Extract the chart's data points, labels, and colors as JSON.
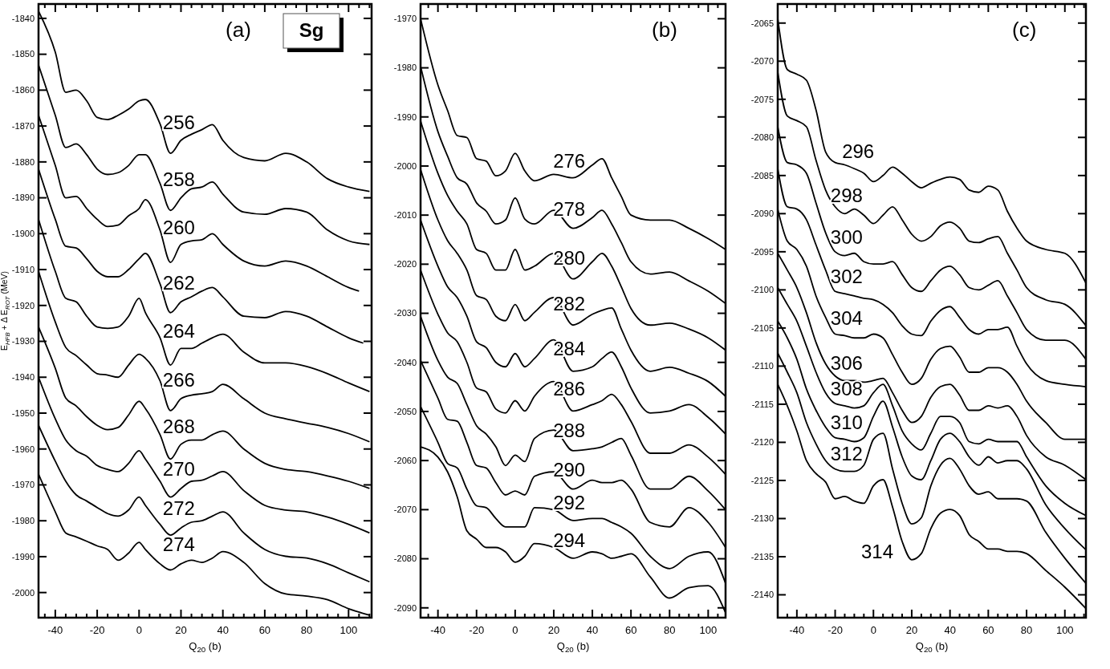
{
  "chart_data": [
    {
      "type": "line",
      "title": "Sg",
      "xlabel": "Q$_{20}$ (b)",
      "ylabel": "E$_{HFB}$ + Δ E$_{ROT}$ (MeV)",
      "xlim": [
        -48,
        111
      ],
      "ylim": [
        -2007,
        -1836
      ],
      "xticks": [
        {
          "value": -45,
          "label": null
        },
        -40,
        {
          "value": -35,
          "label": null
        },
        {
          "value": -30,
          "label": null
        },
        {
          "value": -25,
          "label": null
        },
        -20,
        {
          "value": -15,
          "label": null
        },
        {
          "value": -10,
          "label": null
        },
        {
          "value": -5,
          "label": null
        },
        0,
        {
          "value": 5,
          "label": null
        },
        {
          "value": 10,
          "label": null
        },
        {
          "value": 15,
          "label": null
        },
        20,
        {
          "value": 25,
          "label": null
        },
        {
          "value": 30,
          "label": null
        },
        {
          "value": 35,
          "label": null
        },
        40,
        {
          "value": 45,
          "label": null
        },
        {
          "value": 50,
          "label": null
        },
        {
          "value": 55,
          "label": null
        },
        60,
        {
          "value": 65,
          "label": null
        },
        {
          "value": 70,
          "label": null
        },
        {
          "value": 75,
          "label": null
        },
        80,
        {
          "value": 85,
          "label": null
        },
        {
          "value": 90,
          "label": null
        },
        {
          "value": 95,
          "label": null
        },
        100,
        {
          "value": 105,
          "label": null
        },
        {
          "value": 110,
          "label": null
        }
      ],
      "yticks": [
        -2000,
        -1990,
        -1980,
        -1970,
        -1960,
        -1950,
        -1940,
        -1930,
        -1920,
        -1910,
        -1900,
        -1890,
        -1880,
        -1870,
        -1860,
        -1850,
        -1840
      ],
      "x": [
        -48,
        -40,
        -35,
        -30,
        -25,
        -20,
        -15,
        -10,
        -5,
        0,
        3,
        10,
        15,
        20,
        25,
        30,
        35,
        40,
        50,
        60,
        70,
        80,
        90,
        100,
        110
      ],
      "series": [
        {
          "name": "256",
          "color": "#000000",
          "values": [
            -1838,
            -1849.4,
            -1860.6,
            -1860,
            -1863,
            -1867.6,
            -1868.2,
            -1867,
            -1865.3,
            -1863,
            -1862.6,
            -1869.4,
            -1877.6,
            -1874,
            -1872.3,
            -1871,
            -1869.6,
            -1874,
            -1878.8,
            -1879.7,
            -1877.6,
            -1880,
            -1884.7,
            -1887,
            -1888.2
          ]
        },
        {
          "name": "258",
          "color": "#000000",
          "values": [
            -1853,
            -1867,
            -1876,
            -1875,
            -1878,
            -1882,
            -1883.5,
            -1883,
            -1881,
            -1878,
            -1878,
            -1886,
            -1893.5,
            -1890,
            -1887.5,
            -1887,
            -1885.6,
            -1889,
            -1894,
            -1894.6,
            -1893,
            -1894,
            -1899,
            -1902,
            -1903
          ]
        },
        {
          "name": "260",
          "color": "#000000",
          "x": [
            -48,
            -40,
            -35,
            -30,
            -25,
            -20,
            -15,
            -10,
            -5,
            0,
            3,
            10,
            15,
            20,
            25,
            30,
            35,
            40,
            50,
            60,
            70,
            80,
            90,
            100,
            105
          ],
          "values": [
            -1867,
            -1881,
            -1890,
            -1889.6,
            -1893,
            -1896,
            -1898,
            -1897.6,
            -1895,
            -1893,
            -1890.5,
            -1899,
            -1908,
            -1903,
            -1902,
            -1901.7,
            -1900,
            -1903,
            -1907.6,
            -1909,
            -1907.6,
            -1909,
            -1912,
            -1915,
            -1916
          ]
        },
        {
          "name": "262",
          "color": "#000000",
          "x": [
            -48,
            -40,
            -35,
            -30,
            -25,
            -20,
            -15,
            -10,
            -5,
            0,
            3,
            10,
            15,
            20,
            25,
            30,
            35,
            40,
            50,
            60,
            70,
            80,
            90,
            100,
            107
          ],
          "values": [
            -1882,
            -1896,
            -1903.5,
            -1904,
            -1907,
            -1910.5,
            -1912,
            -1912,
            -1910,
            -1907,
            -1905.5,
            -1914,
            -1922,
            -1919,
            -1917.6,
            -1916,
            -1915,
            -1917.6,
            -1923,
            -1923.4,
            -1921.7,
            -1923,
            -1926,
            -1929,
            -1930.5
          ]
        },
        {
          "name": "264",
          "color": "#000000",
          "values": [
            -1896,
            -1910.5,
            -1918,
            -1919,
            -1923,
            -1926,
            -1926.4,
            -1926,
            -1923,
            -1918,
            -1922,
            -1929,
            -1936.6,
            -1932,
            -1932,
            -1930.5,
            -1929,
            -1928,
            -1933,
            -1936,
            -1936,
            -1937,
            -1939,
            -1941.6,
            -1944
          ]
        },
        {
          "name": "266",
          "color": "#000000",
          "values": [
            -1910.5,
            -1924.6,
            -1931.7,
            -1934,
            -1936.6,
            -1939,
            -1939.4,
            -1940,
            -1936.6,
            -1933.6,
            -1934.7,
            -1941,
            -1949.3,
            -1946,
            -1945,
            -1944.6,
            -1944,
            -1942,
            -1946,
            -1950,
            -1951.6,
            -1952.8,
            -1954,
            -1955.7,
            -1958
          ]
        },
        {
          "name": "268",
          "color": "#000000",
          "values": [
            -1926,
            -1937.5,
            -1945.8,
            -1948,
            -1951,
            -1953.4,
            -1954.6,
            -1954,
            -1950.5,
            -1946.7,
            -1948.7,
            -1956,
            -1962.8,
            -1958.7,
            -1957.5,
            -1957.5,
            -1956,
            -1955,
            -1960,
            -1964,
            -1965.7,
            -1966.3,
            -1967.5,
            -1969,
            -1971
          ]
        },
        {
          "name": "270",
          "color": "#000000",
          "values": [
            -1940,
            -1951.6,
            -1957.5,
            -1960.5,
            -1962,
            -1964.6,
            -1965.7,
            -1966.3,
            -1964,
            -1960.5,
            -1962.8,
            -1969,
            -1973.4,
            -1971,
            -1969,
            -1968.7,
            -1967.5,
            -1966.3,
            -1971.6,
            -1975.7,
            -1977,
            -1977.5,
            -1979,
            -1981,
            -1983.4
          ]
        },
        {
          "name": "272",
          "color": "#000000",
          "values": [
            -1953.4,
            -1963.4,
            -1969,
            -1972.8,
            -1974.5,
            -1976.3,
            -1978,
            -1978.7,
            -1977,
            -1973.4,
            -1975.7,
            -1981,
            -1984,
            -1982,
            -1980.4,
            -1980,
            -1978.7,
            -1977.5,
            -1983.4,
            -1988,
            -1989.9,
            -1990.4,
            -1992,
            -1994.5,
            -1997
          ]
        },
        {
          "name": "274",
          "color": "#000000",
          "values": [
            -1967,
            -1977.5,
            -1983.4,
            -1984.5,
            -1985.7,
            -1987,
            -1988,
            -1991,
            -1989,
            -1986,
            -1988,
            -1992,
            -1993.7,
            -1992,
            -1991,
            -1991.6,
            -1990.4,
            -1988.6,
            -1991.6,
            -1997.5,
            -2000.4,
            -2001,
            -2002,
            -2004.5,
            -2006.3
          ]
        }
      ],
      "annotations": [
        "(a)"
      ]
    },
    {
      "type": "line",
      "xlabel": "Q$_{20}$ (b)",
      "xlim": [
        -49,
        109
      ],
      "ylim": [
        -2092,
        -1967
      ],
      "xticks": [
        {
          "value": -45,
          "label": null
        },
        -40,
        {
          "value": -35,
          "label": null
        },
        {
          "value": -30,
          "label": null
        },
        {
          "value": -25,
          "label": null
        },
        -20,
        {
          "value": -15,
          "label": null
        },
        {
          "value": -10,
          "label": null
        },
        {
          "value": -5,
          "label": null
        },
        0,
        {
          "value": 5,
          "label": null
        },
        {
          "value": 10,
          "label": null
        },
        {
          "value": 15,
          "label": null
        },
        20,
        {
          "value": 25,
          "label": null
        },
        {
          "value": 30,
          "label": null
        },
        {
          "value": 35,
          "label": null
        },
        40,
        {
          "value": 45,
          "label": null
        },
        {
          "value": 50,
          "label": null
        },
        {
          "value": 55,
          "label": null
        },
        60,
        {
          "value": 65,
          "label": null
        },
        {
          "value": 70,
          "label": null
        },
        {
          "value": 75,
          "label": null
        },
        80,
        {
          "value": 85,
          "label": null
        },
        {
          "value": 90,
          "label": null
        },
        {
          "value": 95,
          "label": null
        },
        100,
        {
          "value": 105,
          "label": null
        }
      ],
      "yticks": [
        -2090,
        -2080,
        -2070,
        -2060,
        -2050,
        -2040,
        -2030,
        -2020,
        -2010,
        -2000,
        -1990,
        -1980,
        -1970
      ],
      "x": [
        -49,
        -40,
        -35,
        -30,
        -25,
        -20,
        -15,
        -10,
        -5,
        0,
        5,
        10,
        20,
        30,
        40,
        45,
        50,
        55,
        60,
        70,
        80,
        90,
        100,
        109
      ],
      "series": [
        {
          "name": "276",
          "color": "#000000",
          "values": [
            -1970,
            -1983.5,
            -1988.7,
            -1993.8,
            -1994.2,
            -1998.5,
            -1999,
            -2002,
            -2001,
            -1997.4,
            -2001,
            -2003,
            -2001.7,
            -2002.4,
            -1999.8,
            -1998.5,
            -2002.4,
            -2006.2,
            -2010,
            -2011,
            -2011,
            -2012.7,
            -2014.8,
            -2017
          ]
        },
        {
          "name": "278",
          "color": "#000000",
          "values": [
            -1979.7,
            -1993,
            -1998,
            -2002.4,
            -2003.7,
            -2007.5,
            -2009.2,
            -2011.8,
            -2011,
            -2006.5,
            -2010.8,
            -2011.8,
            -2009,
            -2012.7,
            -2010.5,
            -2009,
            -2011.8,
            -2015.6,
            -2019.5,
            -2022,
            -2021.6,
            -2023.4,
            -2025.5,
            -2028
          ]
        },
        {
          "name": "280",
          "color": "#000000",
          "values": [
            -1990.8,
            -2001.5,
            -2006,
            -2009.2,
            -2011.8,
            -2017,
            -2017.8,
            -2021.2,
            -2021.2,
            -2017,
            -2021.2,
            -2020.4,
            -2017.8,
            -2023,
            -2019.5,
            -2017.8,
            -2020.4,
            -2024.6,
            -2029,
            -2032.4,
            -2032,
            -2033.2,
            -2035,
            -2037.5
          ]
        },
        {
          "name": "282",
          "color": "#000000",
          "values": [
            -2000.7,
            -2011,
            -2015.2,
            -2017.8,
            -2021.2,
            -2026.4,
            -2027.2,
            -2030.6,
            -2031.5,
            -2028.2,
            -2031.5,
            -2029.8,
            -2026.8,
            -2032.4,
            -2030.2,
            -2029.4,
            -2028.9,
            -2033.2,
            -2037.5,
            -2041.8,
            -2041,
            -2042.2,
            -2043.9,
            -2046.9
          ]
        },
        {
          "name": "284",
          "color": "#000000",
          "values": [
            -2011,
            -2020.4,
            -2024.6,
            -2026.8,
            -2030.6,
            -2035.8,
            -2037,
            -2040,
            -2040.9,
            -2038.2,
            -2040.9,
            -2039.2,
            -2035.4,
            -2041.8,
            -2040.9,
            -2039.2,
            -2037.9,
            -2040.9,
            -2045.2,
            -2050.3,
            -2049.9,
            -2048.6,
            -2051.2,
            -2054.6
          ]
        },
        {
          "name": "286",
          "color": "#000000",
          "values": [
            -2021.2,
            -2030.2,
            -2034,
            -2035.8,
            -2040,
            -2045.2,
            -2046,
            -2049.5,
            -2050.3,
            -2047.8,
            -2049.9,
            -2046.9,
            -2043.9,
            -2049.9,
            -2048.6,
            -2047.8,
            -2046.5,
            -2048.6,
            -2052,
            -2058.5,
            -2058.5,
            -2056.8,
            -2059.3,
            -2062.8
          ]
        },
        {
          "name": "288",
          "color": "#000000",
          "values": [
            -2030.6,
            -2039.6,
            -2043,
            -2044.3,
            -2048.6,
            -2052.9,
            -2054.6,
            -2057.2,
            -2061,
            -2058.9,
            -2060.2,
            -2055.5,
            -2053.8,
            -2058,
            -2057.6,
            -2057.2,
            -2056.3,
            -2055.5,
            -2058.9,
            -2065.8,
            -2065.8,
            -2063.2,
            -2066.2,
            -2070
          ]
        },
        {
          "name": "290",
          "color": "#000000",
          "values": [
            -2039.6,
            -2047.3,
            -2051.6,
            -2052,
            -2056.3,
            -2061,
            -2061.5,
            -2064.5,
            -2067,
            -2066.2,
            -2067,
            -2063.2,
            -2062.3,
            -2065.8,
            -2064,
            -2064.5,
            -2064.5,
            -2064,
            -2065.8,
            -2072.6,
            -2073.5,
            -2069.6,
            -2072.6,
            -2077.7
          ]
        },
        {
          "name": "292",
          "color": "#000000",
          "values": [
            -2049,
            -2056.3,
            -2060.6,
            -2061.5,
            -2065.8,
            -2069.2,
            -2069.6,
            -2071.8,
            -2073.5,
            -2073.5,
            -2073.5,
            -2069.6,
            -2070,
            -2072.2,
            -2071.8,
            -2071.8,
            -2072.6,
            -2073.5,
            -2074.8,
            -2079.5,
            -2082,
            -2079.5,
            -2078.6,
            -2085
          ]
        },
        {
          "name": "294",
          "color": "#000000",
          "values": [
            -2057.2,
            -2059.3,
            -2062.3,
            -2067.4,
            -2074.3,
            -2076,
            -2077.7,
            -2077.7,
            -2078.6,
            -2080.7,
            -2079.5,
            -2076.9,
            -2077.7,
            -2079.9,
            -2078.6,
            -2079,
            -2079.9,
            -2079.5,
            -2079,
            -2083.7,
            -2088,
            -2085.9,
            -2085.5,
            -2091
          ]
        }
      ],
      "annotations": [
        "(b)"
      ]
    },
    {
      "type": "line",
      "xlabel": "Q$_{20}$ (b)",
      "xlim": [
        -50,
        111
      ],
      "ylim": [
        -2143,
        -2062.5
      ],
      "xticks": [
        {
          "value": -45,
          "label": null
        },
        -40,
        {
          "value": -35,
          "label": null
        },
        {
          "value": -30,
          "label": null
        },
        {
          "value": -25,
          "label": null
        },
        -20,
        {
          "value": -15,
          "label": null
        },
        {
          "value": -10,
          "label": null
        },
        {
          "value": -5,
          "label": null
        },
        0,
        {
          "value": 5,
          "label": null
        },
        {
          "value": 10,
          "label": null
        },
        {
          "value": 15,
          "label": null
        },
        20,
        {
          "value": 25,
          "label": null
        },
        {
          "value": 30,
          "label": null
        },
        {
          "value": 35,
          "label": null
        },
        40,
        {
          "value": 45,
          "label": null
        },
        {
          "value": 50,
          "label": null
        },
        {
          "value": 55,
          "label": null
        },
        60,
        {
          "value": 65,
          "label": null
        },
        {
          "value": 70,
          "label": null
        },
        {
          "value": 75,
          "label": null
        },
        80,
        {
          "value": 85,
          "label": null
        },
        {
          "value": 90,
          "label": null
        },
        {
          "value": 95,
          "label": null
        },
        100,
        {
          "value": 105,
          "label": null
        },
        {
          "value": 110,
          "label": null
        }
      ],
      "yticks": [
        -2140,
        -2135,
        -2130,
        -2125,
        -2120,
        -2115,
        -2110,
        -2105,
        -2100,
        -2095,
        -2090,
        -2085,
        -2080,
        -2075,
        -2070,
        -2065
      ],
      "x": [
        -50,
        -45,
        -40,
        -35,
        -30,
        -25,
        -20,
        -15,
        -10,
        -5,
        0,
        5,
        10,
        15,
        20,
        25,
        30,
        35,
        40,
        45,
        50,
        55,
        60,
        65,
        70,
        75,
        80,
        90,
        100,
        111
      ],
      "series": [
        {
          "name": "296",
          "color": "#000000",
          "values": [
            -2064.4,
            -2071.1,
            -2071.7,
            -2072.5,
            -2076.4,
            -2081.9,
            -2083.3,
            -2083.6,
            -2084.1,
            -2084.7,
            -2085.8,
            -2085,
            -2083.9,
            -2084.7,
            -2085.8,
            -2086.6,
            -2086,
            -2085.5,
            -2085.2,
            -2085.5,
            -2086.9,
            -2087.2,
            -2086.4,
            -2086.9,
            -2089.7,
            -2091.9,
            -2093.6,
            -2094.7,
            -2095.2,
            -2099.1
          ]
        },
        {
          "name": "298",
          "color": "#000000",
          "values": [
            -2071.4,
            -2077.2,
            -2077.8,
            -2078.6,
            -2083,
            -2086.9,
            -2089.1,
            -2090,
            -2089.4,
            -2090.2,
            -2091.3,
            -2090.2,
            -2089.1,
            -2090.8,
            -2092.7,
            -2093.6,
            -2093,
            -2091.6,
            -2091.1,
            -2091.9,
            -2093.6,
            -2093.8,
            -2093.3,
            -2093,
            -2095.2,
            -2097.4,
            -2099.7,
            -2101.3,
            -2101.9,
            -2104.7
          ]
        },
        {
          "name": "300",
          "color": "#000000",
          "values": [
            -2078.6,
            -2083.3,
            -2083.6,
            -2084.7,
            -2088.6,
            -2092.5,
            -2095,
            -2095.5,
            -2095.2,
            -2096.3,
            -2096.6,
            -2096.6,
            -2096.3,
            -2098,
            -2099.7,
            -2100.2,
            -2098.8,
            -2097.4,
            -2096.9,
            -2098,
            -2099.7,
            -2100,
            -2099.4,
            -2098.8,
            -2100.8,
            -2103,
            -2105.2,
            -2106.6,
            -2106.6,
            -2109.1
          ]
        },
        {
          "name": "302",
          "color": "#000000",
          "values": [
            -2084.1,
            -2089.1,
            -2089.4,
            -2090.8,
            -2094.1,
            -2097.4,
            -2100.2,
            -2100.5,
            -2100.8,
            -2101.1,
            -2101.3,
            -2101.9,
            -2103,
            -2104.7,
            -2105.8,
            -2106,
            -2104.1,
            -2102.7,
            -2102.2,
            -2103.6,
            -2105.2,
            -2105.8,
            -2105.2,
            -2105.2,
            -2104.9,
            -2107.4,
            -2109.7,
            -2111.9,
            -2112.4,
            -2112.7
          ]
        },
        {
          "name": "304",
          "color": "#000000",
          "values": [
            -2089.4,
            -2093.6,
            -2094.7,
            -2096.9,
            -2100.8,
            -2103.6,
            -2105.8,
            -2106,
            -2106.3,
            -2106.3,
            -2105.8,
            -2106.3,
            -2108.5,
            -2110.8,
            -2112.4,
            -2111.6,
            -2109.1,
            -2107.7,
            -2107.4,
            -2108.8,
            -2110.8,
            -2110.8,
            -2110.2,
            -2110.2,
            -2110.8,
            -2112.4,
            -2114.6,
            -2117.4,
            -2119.6,
            -2119.6
          ]
        },
        {
          "name": "306",
          "color": "#000000",
          "values": [
            -2095.2,
            -2097.4,
            -2099.7,
            -2103,
            -2106.9,
            -2109.7,
            -2111.3,
            -2111.9,
            -2111.9,
            -2112.1,
            -2111.9,
            -2111.6,
            -2113.5,
            -2115.8,
            -2117.4,
            -2116.6,
            -2114.1,
            -2112.7,
            -2112.4,
            -2113.8,
            -2115.8,
            -2115.8,
            -2115.2,
            -2115.5,
            -2115.2,
            -2116.6,
            -2119.1,
            -2121.9,
            -2123,
            -2124.9
          ]
        },
        {
          "name": "308",
          "color": "#000000",
          "values": [
            -2099.7,
            -2101.9,
            -2104.1,
            -2107.4,
            -2110.8,
            -2113.5,
            -2114.9,
            -2115.2,
            -2115.5,
            -2115.2,
            -2113.5,
            -2112.4,
            -2115.2,
            -2118.5,
            -2120.2,
            -2121,
            -2118.8,
            -2116.6,
            -2116.6,
            -2117.4,
            -2119.9,
            -2120.2,
            -2119.6,
            -2119.9,
            -2119.9,
            -2119.9,
            -2121.9,
            -2125.7,
            -2128,
            -2129.6
          ]
        },
        {
          "name": "310",
          "color": "#000000",
          "values": [
            -2104.1,
            -2106.3,
            -2109.1,
            -2113,
            -2115.8,
            -2118,
            -2119.4,
            -2119.6,
            -2119.9,
            -2119.4,
            -2116.6,
            -2114.6,
            -2118,
            -2121.9,
            -2124.4,
            -2124.9,
            -2122.4,
            -2119.6,
            -2118.8,
            -2119.9,
            -2121.9,
            -2123,
            -2121.9,
            -2122.7,
            -2122.4,
            -2122.4,
            -2123.5,
            -2128.2,
            -2131.3,
            -2134.1
          ]
        },
        {
          "name": "312",
          "color": "#000000",
          "values": [
            -2108.3,
            -2110.8,
            -2113.5,
            -2117.4,
            -2120.2,
            -2122.4,
            -2123.5,
            -2123.8,
            -2123.8,
            -2123,
            -2119.6,
            -2118.8,
            -2123.5,
            -2128,
            -2130.7,
            -2129.9,
            -2125.7,
            -2123,
            -2122.1,
            -2123.5,
            -2125.7,
            -2126.8,
            -2126.5,
            -2127.4,
            -2127.4,
            -2127.4,
            -2127.7,
            -2131.8,
            -2135.2,
            -2138.5
          ]
        },
        {
          "name": "314",
          "color": "#000000",
          "values": [
            -2112.4,
            -2115.2,
            -2118.5,
            -2122.4,
            -2124.1,
            -2125.2,
            -2127.4,
            -2127.1,
            -2127.7,
            -2128,
            -2125.7,
            -2124.9,
            -2128.5,
            -2133,
            -2135.4,
            -2134.6,
            -2131.3,
            -2129.3,
            -2128.8,
            -2129.6,
            -2132.1,
            -2133,
            -2134,
            -2134,
            -2134.3,
            -2134.3,
            -2134.6,
            -2136.8,
            -2139,
            -2141.8
          ]
        }
      ],
      "annotations": [
        "(c)"
      ]
    }
  ]
}
